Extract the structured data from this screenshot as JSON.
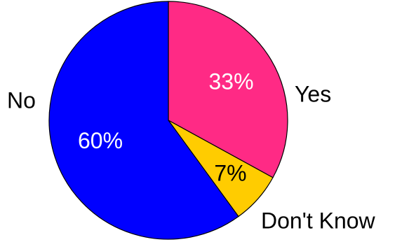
{
  "chart_data": {
    "type": "pie",
    "start_angle_deg": 0,
    "direction": "clockwise",
    "slices": [
      {
        "label": "Yes",
        "value": 33,
        "value_label": "33%",
        "color": "#ff2a85",
        "value_label_color": "#ffffff"
      },
      {
        "label": "Don't Know",
        "value": 7,
        "value_label": "7%",
        "color": "#ffcc00",
        "value_label_color": "#000000"
      },
      {
        "label": "No",
        "value": 60,
        "value_label": "60%",
        "color": "#0000ff",
        "value_label_color": "#ffffff"
      }
    ]
  }
}
